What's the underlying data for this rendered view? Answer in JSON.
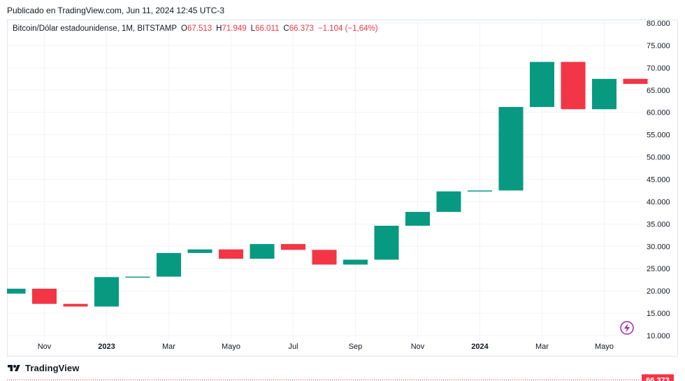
{
  "header": {
    "caption": "Publicado en TradingView.com, Jun 11, 2024 12:45 UTC-3"
  },
  "legend": {
    "symbol_text": "Bitcoin/Dólar estadounidense, 1M, BITSTAMP",
    "o_label": "O",
    "o_value": "67.513",
    "h_label": "H",
    "h_value": "71.949",
    "l_label": "L",
    "l_value": "66.011",
    "c_label": "C",
    "c_value": "66.373",
    "change": "−1.104 (−1,64%)"
  },
  "footer": {
    "brand": "TradingView"
  },
  "colors": {
    "up": "#089981",
    "down": "#f23645",
    "grid": "#f0f3fa",
    "price_line": "#f23645",
    "lightning": "#9c27b0"
  },
  "icons": {
    "brand_logo": "tradingview-logo-icon",
    "alert": "lightning-icon"
  },
  "chart_data": {
    "type": "candlestick",
    "interval": "1M",
    "current_price_label": "66.373",
    "current_price": 66.373,
    "ylim": [
      10000,
      80000
    ],
    "y_ticks": [
      10000,
      15000,
      20000,
      25000,
      30000,
      35000,
      40000,
      45000,
      50000,
      55000,
      60000,
      65000,
      70000,
      75000,
      80000
    ],
    "y_tick_labels": [
      "10.000",
      "15.000",
      "20.000",
      "25.000",
      "30.000",
      "35.000",
      "40.000",
      "45.000",
      "50.000",
      "55.000",
      "60.000",
      "65.000",
      "70.000",
      "75.000",
      "80.000"
    ],
    "x_ticks": [
      {
        "label": "Nov",
        "index": 1,
        "bold": false
      },
      {
        "label": "2023",
        "index": 3,
        "bold": true
      },
      {
        "label": "Mar",
        "index": 5,
        "bold": false
      },
      {
        "label": "Mayo",
        "index": 7,
        "bold": false
      },
      {
        "label": "Jul",
        "index": 9,
        "bold": false
      },
      {
        "label": "Sep",
        "index": 11,
        "bold": false
      },
      {
        "label": "Nov",
        "index": 13,
        "bold": false
      },
      {
        "label": "2024",
        "index": 15,
        "bold": true
      },
      {
        "label": "Mar",
        "index": 17,
        "bold": false
      },
      {
        "label": "Mayo",
        "index": 19,
        "bold": false
      }
    ],
    "candles": [
      {
        "month": "2022-10",
        "open": 19400,
        "close": 20500
      },
      {
        "month": "2022-11",
        "open": 20500,
        "close": 17100
      },
      {
        "month": "2022-12",
        "open": 17100,
        "close": 16500
      },
      {
        "month": "2023-01",
        "open": 16500,
        "close": 23100
      },
      {
        "month": "2023-02",
        "open": 23100,
        "close": 23200
      },
      {
        "month": "2023-03",
        "open": 23200,
        "close": 28500
      },
      {
        "month": "2023-04",
        "open": 28500,
        "close": 29300
      },
      {
        "month": "2023-05",
        "open": 29300,
        "close": 27200
      },
      {
        "month": "2023-06",
        "open": 27200,
        "close": 30500
      },
      {
        "month": "2023-07",
        "open": 30500,
        "close": 29200
      },
      {
        "month": "2023-08",
        "open": 29200,
        "close": 25900
      },
      {
        "month": "2023-09",
        "open": 25900,
        "close": 27000
      },
      {
        "month": "2023-10",
        "open": 27000,
        "close": 34600
      },
      {
        "month": "2023-11",
        "open": 34600,
        "close": 37700
      },
      {
        "month": "2023-12",
        "open": 37700,
        "close": 42300
      },
      {
        "month": "2024-01",
        "open": 42300,
        "close": 42500
      },
      {
        "month": "2024-02",
        "open": 42500,
        "close": 61200
      },
      {
        "month": "2024-03",
        "open": 61200,
        "close": 71300
      },
      {
        "month": "2024-04",
        "open": 71300,
        "close": 60700
      },
      {
        "month": "2024-05",
        "open": 60700,
        "close": 67500
      },
      {
        "month": "2024-06",
        "open": 67513,
        "close": 66373
      }
    ]
  }
}
